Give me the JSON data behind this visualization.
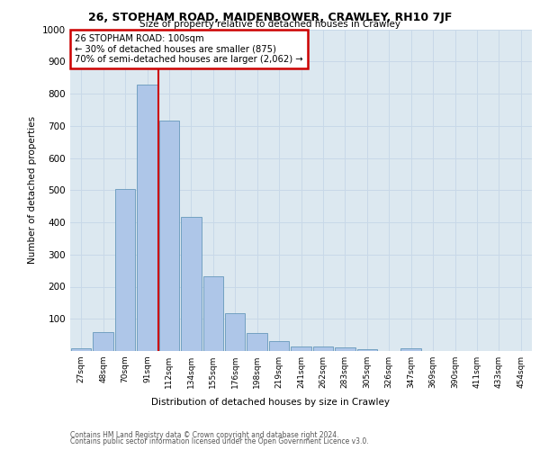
{
  "title1": "26, STOPHAM ROAD, MAIDENBOWER, CRAWLEY, RH10 7JF",
  "title2": "Size of property relative to detached houses in Crawley",
  "xlabel": "Distribution of detached houses by size in Crawley",
  "ylabel": "Number of detached properties",
  "categories": [
    "27sqm",
    "48sqm",
    "70sqm",
    "91sqm",
    "112sqm",
    "134sqm",
    "155sqm",
    "176sqm",
    "198sqm",
    "219sqm",
    "241sqm",
    "262sqm",
    "283sqm",
    "305sqm",
    "326sqm",
    "347sqm",
    "369sqm",
    "390sqm",
    "411sqm",
    "433sqm",
    "454sqm"
  ],
  "values": [
    7,
    58,
    503,
    828,
    715,
    418,
    231,
    117,
    57,
    32,
    15,
    13,
    10,
    6,
    0,
    8,
    0,
    0,
    0,
    0,
    0
  ],
  "bar_color": "#aec6e8",
  "bar_edge_color": "#6699bb",
  "annotation_text": "26 STOPHAM ROAD: 100sqm\n← 30% of detached houses are smaller (875)\n70% of semi-detached houses are larger (2,062) →",
  "annotation_box_color": "#ffffff",
  "annotation_box_edge": "#cc0000",
  "vline_color": "#cc0000",
  "vline_x": 3.5,
  "ylim": [
    0,
    1000
  ],
  "yticks": [
    0,
    100,
    200,
    300,
    400,
    500,
    600,
    700,
    800,
    900,
    1000
  ],
  "grid_color": "#c8d8e8",
  "background_color": "#dce8f0",
  "footer1": "Contains HM Land Registry data © Crown copyright and database right 2024.",
  "footer2": "Contains public sector information licensed under the Open Government Licence v3.0."
}
